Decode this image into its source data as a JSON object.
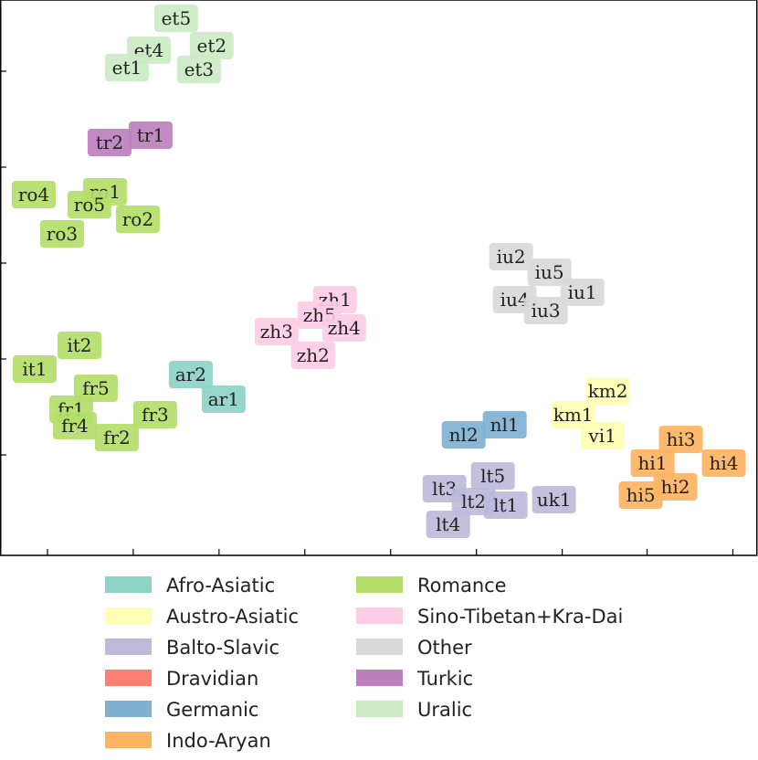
{
  "chart_data": {
    "type": "scatter",
    "title": "",
    "xlabel": "",
    "ylabel": "",
    "xlim": [
      0,
      830
    ],
    "ylim": [
      0,
      608
    ],
    "x_ticks": [
      52,
      146,
      240,
      334,
      428,
      522,
      616,
      709,
      803
    ],
    "y_ticks": [
      110,
      215,
      320,
      425,
      530
    ],
    "legend_position": "bottom",
    "categories": [
      {
        "name": "Afro-Asiatic",
        "color": "#8dd3c7"
      },
      {
        "name": "Austro-Asiatic",
        "color": "#ffffb3"
      },
      {
        "name": "Balto-Slavic",
        "color": "#bebada"
      },
      {
        "name": "Dravidian",
        "color": "#fb8072"
      },
      {
        "name": "Germanic",
        "color": "#80b1d3"
      },
      {
        "name": "Indo-Aryan",
        "color": "#fdb462"
      },
      {
        "name": "Romance",
        "color": "#b3de69"
      },
      {
        "name": "Sino-Tibetan+Kra-Dai",
        "color": "#fccde5"
      },
      {
        "name": "Other",
        "color": "#d9d9d9"
      },
      {
        "name": "Turkic",
        "color": "#bc80bd"
      },
      {
        "name": "Uralic",
        "color": "#ccebc5"
      }
    ],
    "points": [
      {
        "label": "et5",
        "group": "Uralic",
        "x": 193,
        "y": 588
      },
      {
        "label": "et2",
        "group": "Uralic",
        "x": 232,
        "y": 558
      },
      {
        "label": "et4",
        "group": "Uralic",
        "x": 163,
        "y": 553
      },
      {
        "label": "et1",
        "group": "Uralic",
        "x": 139,
        "y": 534
      },
      {
        "label": "et3",
        "group": "Uralic",
        "x": 218,
        "y": 532
      },
      {
        "label": "tr1",
        "group": "Turkic",
        "x": 165,
        "y": 460
      },
      {
        "label": "tr2",
        "group": "Turkic",
        "x": 120,
        "y": 452
      },
      {
        "label": "ro4",
        "group": "Romance",
        "x": 37,
        "y": 395
      },
      {
        "label": "ro1",
        "group": "Romance",
        "x": 115,
        "y": 398
      },
      {
        "label": "ro5",
        "group": "Romance",
        "x": 98,
        "y": 384
      },
      {
        "label": "ro2",
        "group": "Romance",
        "x": 151,
        "y": 368
      },
      {
        "label": "ro3",
        "group": "Romance",
        "x": 68,
        "y": 352
      },
      {
        "label": "it2",
        "group": "Romance",
        "x": 87,
        "y": 230
      },
      {
        "label": "it1",
        "group": "Romance",
        "x": 38,
        "y": 204
      },
      {
        "label": "fr5",
        "group": "Romance",
        "x": 105,
        "y": 183
      },
      {
        "label": "fr1",
        "group": "Romance",
        "x": 78,
        "y": 160
      },
      {
        "label": "fr3",
        "group": "Romance",
        "x": 170,
        "y": 154
      },
      {
        "label": "fr4",
        "group": "Romance",
        "x": 82,
        "y": 142
      },
      {
        "label": "fr2",
        "group": "Romance",
        "x": 128,
        "y": 129
      },
      {
        "label": "ar2",
        "group": "Afro-Asiatic",
        "x": 209,
        "y": 198
      },
      {
        "label": "ar1",
        "group": "Afro-Asiatic",
        "x": 245,
        "y": 171
      },
      {
        "label": "zh1",
        "group": "Sino-Tibetan+Kra-Dai",
        "x": 367,
        "y": 280
      },
      {
        "label": "zh5",
        "group": "Sino-Tibetan+Kra-Dai",
        "x": 350,
        "y": 263
      },
      {
        "label": "zh4",
        "group": "Sino-Tibetan+Kra-Dai",
        "x": 377,
        "y": 249
      },
      {
        "label": "zh3",
        "group": "Sino-Tibetan+Kra-Dai",
        "x": 303,
        "y": 245
      },
      {
        "label": "zh2",
        "group": "Sino-Tibetan+Kra-Dai",
        "x": 343,
        "y": 219
      },
      {
        "label": "iu2",
        "group": "Other",
        "x": 560,
        "y": 327
      },
      {
        "label": "iu5",
        "group": "Other",
        "x": 602,
        "y": 310
      },
      {
        "label": "iu1",
        "group": "Other",
        "x": 638,
        "y": 288
      },
      {
        "label": "iu4",
        "group": "Other",
        "x": 564,
        "y": 280
      },
      {
        "label": "iu3",
        "group": "Other",
        "x": 598,
        "y": 268
      },
      {
        "label": "km2",
        "group": "Austro-Asiatic",
        "x": 666,
        "y": 180
      },
      {
        "label": "km1",
        "group": "Austro-Asiatic",
        "x": 628,
        "y": 154
      },
      {
        "label": "vi1",
        "group": "Austro-Asiatic",
        "x": 660,
        "y": 131
      },
      {
        "label": "nl1",
        "group": "Germanic",
        "x": 553,
        "y": 143
      },
      {
        "label": "nl2",
        "group": "Germanic",
        "x": 508,
        "y": 132
      },
      {
        "label": "hi3",
        "group": "Indo-Aryan",
        "x": 746,
        "y": 127
      },
      {
        "label": "hi1",
        "group": "Indo-Aryan",
        "x": 715,
        "y": 101
      },
      {
        "label": "hi4",
        "group": "Indo-Aryan",
        "x": 793,
        "y": 101
      },
      {
        "label": "hi2",
        "group": "Indo-Aryan",
        "x": 740,
        "y": 75
      },
      {
        "label": "hi5",
        "group": "Indo-Aryan",
        "x": 702,
        "y": 66
      },
      {
        "label": "lt5",
        "group": "Balto-Slavic",
        "x": 540,
        "y": 87
      },
      {
        "label": "lt3",
        "group": "Balto-Slavic",
        "x": 487,
        "y": 73
      },
      {
        "label": "lt2",
        "group": "Balto-Slavic",
        "x": 519,
        "y": 59
      },
      {
        "label": "lt1",
        "group": "Balto-Slavic",
        "x": 554,
        "y": 55
      },
      {
        "label": "uk1",
        "group": "Balto-Slavic",
        "x": 607,
        "y": 61
      },
      {
        "label": "lt4",
        "group": "Balto-Slavic",
        "x": 491,
        "y": 34
      }
    ]
  }
}
